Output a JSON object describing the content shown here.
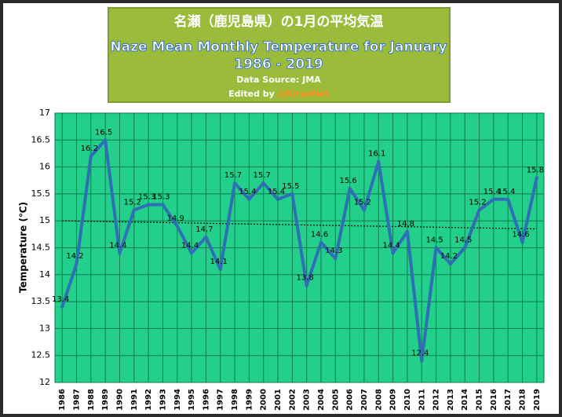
{
  "chart_data": {
    "type": "line",
    "title_jp": "名瀬（鹿児島県）の1月の平均気温",
    "title": "Naze Mean Monthly Temperature for January",
    "subtitle": "1986 - 2019",
    "source": "Data Source: JMA",
    "edited_by": "Edited by ",
    "author": "@KiryeNet",
    "y_label": "Temperature (℃)",
    "categories": [
      "1986",
      "1987",
      "1988",
      "1989",
      "1990",
      "1991",
      "1992",
      "1993",
      "1994",
      "1995",
      "1996",
      "1997",
      "1998",
      "1999",
      "2000",
      "2001",
      "2002",
      "2003",
      "2004",
      "2005",
      "2006",
      "2007",
      "2008",
      "2009",
      "2010",
      "2011",
      "2012",
      "2013",
      "2014",
      "2015",
      "2016",
      "2017",
      "2018",
      "2019"
    ],
    "values": [
      13.4,
      14.2,
      16.2,
      16.5,
      14.4,
      15.2,
      15.3,
      15.3,
      14.9,
      14.4,
      14.7,
      14.1,
      15.7,
      15.4,
      15.7,
      15.4,
      15.5,
      13.8,
      14.6,
      14.3,
      15.6,
      15.2,
      16.1,
      14.4,
      14.8,
      12.4,
      14.5,
      14.2,
      14.5,
      15.2,
      15.4,
      15.4,
      14.6,
      15.8
    ],
    "color": "#2f6fb5",
    "trendline": [
      15.0,
      14.85
    ],
    "ylim": [
      12,
      17
    ],
    "yticks": [
      12,
      12.5,
      13,
      13.5,
      14,
      14.5,
      15,
      15.5,
      16,
      16.5,
      17
    ],
    "grid": true
  }
}
